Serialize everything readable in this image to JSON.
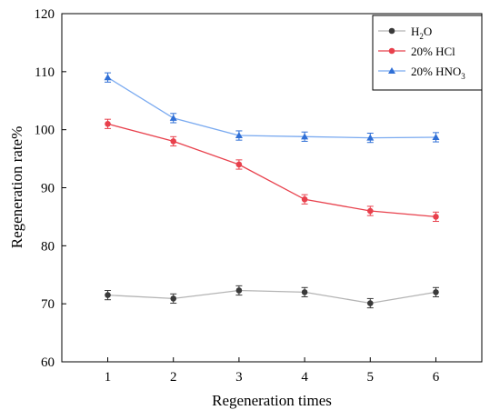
{
  "chart_data": {
    "type": "line",
    "title": "",
    "xlabel": "Regeneration times",
    "ylabel": "Regeneration rate%",
    "x": [
      1,
      2,
      3,
      4,
      5,
      6
    ],
    "xlim": [
      0.3,
      6.7
    ],
    "ylim": [
      60,
      120
    ],
    "xticks": [
      1,
      2,
      3,
      4,
      5,
      6
    ],
    "yticks": [
      60,
      70,
      80,
      90,
      100,
      110,
      120
    ],
    "grid": false,
    "legend_position": "top-right",
    "error_bars": true,
    "series": [
      {
        "name": "H2O",
        "name_main": "H",
        "name_sub": "2",
        "name_tail": "O",
        "color": "#3a3a3a",
        "line_color": "#b4b4b4",
        "marker": "circle",
        "values": [
          71.5,
          70.9,
          72.3,
          72.0,
          70.1,
          72.0
        ],
        "errors": [
          0.8,
          0.8,
          0.8,
          0.8,
          0.8,
          0.8
        ]
      },
      {
        "name": "20% HCl",
        "name_main": "20% HCl",
        "name_sub": "",
        "name_tail": "",
        "color": "#e8404c",
        "line_color": "#e8404c",
        "marker": "circle",
        "values": [
          101.0,
          98.0,
          94.0,
          88.0,
          86.0,
          85.0
        ],
        "errors": [
          0.8,
          0.8,
          0.8,
          0.8,
          0.8,
          0.8
        ]
      },
      {
        "name": "20% HNO3",
        "name_main": "20% HNO",
        "name_sub": "3",
        "name_tail": "",
        "color": "#2f6fd6",
        "line_color": "#7aaaf0",
        "marker": "triangle",
        "values": [
          109.0,
          102.0,
          99.0,
          98.8,
          98.6,
          98.7
        ],
        "errors": [
          0.8,
          0.8,
          0.8,
          0.8,
          0.8,
          0.8
        ]
      }
    ]
  }
}
